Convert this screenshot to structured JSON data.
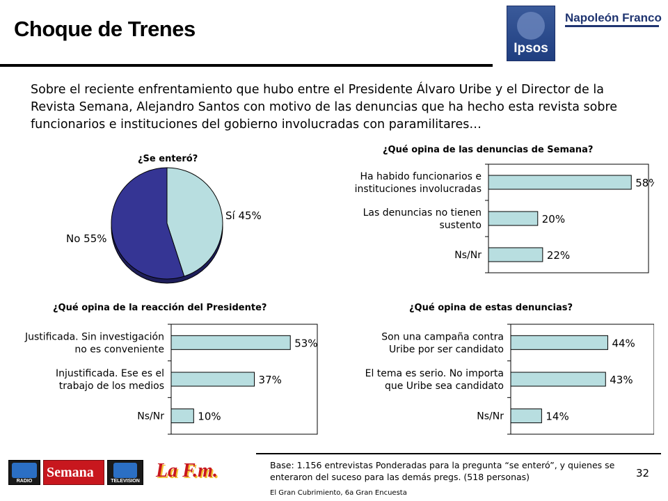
{
  "page": {
    "title": "Choque de Trenes",
    "intro": "Sobre el reciente enfrentamiento que hubo entre el Presidente Álvaro Uribe y el Director de la Revista Semana, Alejandro Santos con motivo de las denuncias que ha hecho esta revista sobre funcionarios e instituciones del gobierno involucradas con paramilitares…",
    "base_note": "Base: 1.156 entrevistas Ponderadas para la pregunta “se enteró”, y quienes se enteraron del suceso para las demás pregs. (518 personas)",
    "survey_name": "El Gran Cubrimiento, 6a Gran Encuesta",
    "page_number": "32"
  },
  "logos": {
    "ipsos": "Ipsos",
    "napoleon_franco": "Napoleón Franco",
    "rcn_radio": "RADIO",
    "semana": "Semana",
    "rcn_tv": "TELEVISION",
    "lafm": "La F.m."
  },
  "colors": {
    "pie_si": "#b8dee0",
    "pie_no": "#353594",
    "bar_fill": "#b8dee0",
    "bar_stroke": "#000000"
  },
  "chart_data": [
    {
      "type": "pie",
      "title": "¿Se enteró?",
      "slices": [
        {
          "label": "Sí",
          "value": 45,
          "display": "Sí 45%"
        },
        {
          "label": "No",
          "value": 55,
          "display": "No 55%"
        }
      ]
    },
    {
      "type": "bar",
      "orientation": "horizontal",
      "title": "¿Qué opina de las denuncias de Semana?",
      "categories": [
        "Ha habido funcionarios e instituciones involucradas",
        "Las denuncias no tienen sustento",
        "Ns/Nr"
      ],
      "category_lines": [
        [
          "Ha habido funcionarios e",
          "instituciones involucradas"
        ],
        [
          "Las denuncias no tienen",
          "sustento"
        ],
        [
          "Ns/Nr"
        ]
      ],
      "values": [
        58,
        20,
        22
      ],
      "value_labels": [
        "58%",
        "20%",
        "22%"
      ],
      "xlim": [
        0,
        65
      ]
    },
    {
      "type": "bar",
      "orientation": "horizontal",
      "title": "¿Qué opina de la reacción del Presidente?",
      "categories": [
        "Justificada. Sin investigación no es conveniente",
        "Injustificada. Ese es el trabajo de los medios",
        "Ns/Nr"
      ],
      "category_lines": [
        [
          "Justificada. Sin investigación",
          "no es conveniente"
        ],
        [
          "Injustificada. Ese es el",
          "trabajo de los medios"
        ],
        [
          "Ns/Nr"
        ]
      ],
      "values": [
        53,
        37,
        10
      ],
      "value_labels": [
        "53%",
        "37%",
        "10%"
      ],
      "xlim": [
        0,
        65
      ]
    },
    {
      "type": "bar",
      "orientation": "horizontal",
      "title": "¿Qué opina de estas denuncias?",
      "categories": [
        "Son una campaña contra Uribe por ser candidato",
        "El tema es serio. No importa que Uribe sea candidato",
        "Ns/Nr"
      ],
      "category_lines": [
        [
          "Son una campaña contra",
          "Uribe por ser candidato"
        ],
        [
          "El tema es serio. No importa",
          "que Uribe sea candidato"
        ],
        [
          "Ns/Nr"
        ]
      ],
      "values": [
        44,
        43,
        14
      ],
      "value_labels": [
        "44%",
        "43%",
        "14%"
      ],
      "xlim": [
        0,
        65
      ]
    }
  ]
}
